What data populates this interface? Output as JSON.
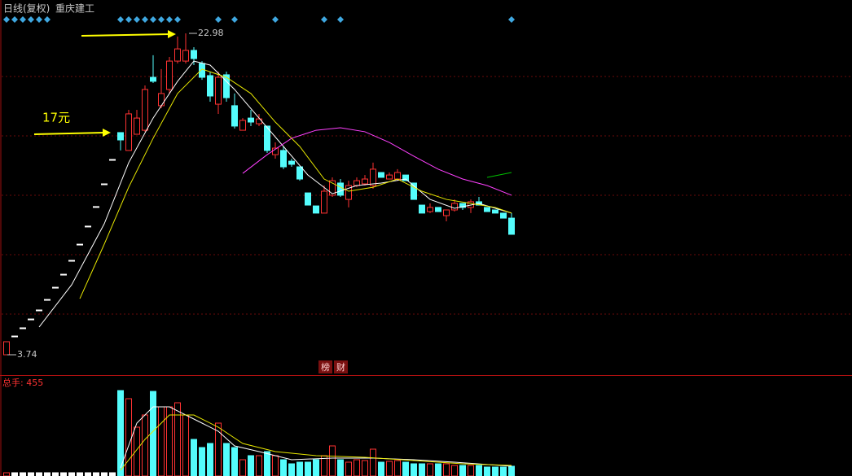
{
  "chart_data": {
    "type": "candlestick",
    "period": "日线(复权)",
    "title": "重庆建工",
    "ylim": [
      3.74,
      22.98
    ],
    "up_color": "#ff3232",
    "down_color": "#54fcfc",
    "flat_color": "#ffffff",
    "open": [
      3.74,
      4.86,
      5.35,
      5.88,
      6.42,
      7.05,
      7.78,
      8.56,
      9.39,
      10.36,
      11.44,
      12.61,
      13.97,
      15.43,
      17.04,
      15.97,
      16.94,
      17.18,
      20.35,
      18.65,
      19.62,
      21.32,
      21.32,
      21.96,
      21.18,
      20.45,
      18.74,
      20.5,
      18.65,
      17.18,
      17.91,
      17.57,
      17.43,
      15.72,
      15.97,
      15.33,
      14.99,
      13.43,
      12.65,
      12.22,
      13.29,
      14.02,
      13.04,
      13.87,
      13.97,
      13.87,
      14.65,
      14.26,
      14.26,
      14.5,
      14.02,
      12.7,
      12.31,
      12.56,
      12.07,
      12.41,
      12.8,
      12.56,
      12.9,
      12.56,
      12.41,
      12.22,
      11.92
    ],
    "high": [
      4.52,
      4.86,
      5.35,
      5.88,
      6.42,
      7.05,
      7.78,
      8.56,
      9.39,
      10.36,
      11.44,
      12.61,
      13.97,
      15.43,
      17.04,
      18.4,
      18.4,
      19.86,
      21.67,
      20.84,
      21.57,
      22.79,
      22.98,
      22.15,
      21.32,
      20.69,
      20.69,
      20.69,
      19.38,
      17.91,
      18.4,
      18.16,
      17.43,
      16.45,
      16.21,
      15.48,
      14.99,
      13.43,
      12.65,
      13.87,
      14.36,
      14.26,
      14.16,
      14.36,
      14.5,
      15.24,
      14.65,
      14.65,
      14.85,
      14.5,
      14.02,
      12.7,
      12.8,
      12.56,
      12.41,
      13.04,
      12.8,
      13.04,
      13.19,
      12.56,
      12.41,
      12.22,
      12.22
    ],
    "low": [
      3.74,
      4.86,
      5.35,
      5.88,
      6.42,
      7.05,
      7.78,
      8.56,
      9.39,
      10.36,
      11.44,
      12.61,
      13.97,
      15.43,
      15.97,
      15.97,
      16.94,
      17.09,
      20.01,
      18.5,
      19.38,
      21.18,
      21.18,
      21.08,
      20.2,
      18.89,
      18.16,
      18.89,
      17.28,
      17.18,
      17.43,
      17.43,
      15.82,
      15.48,
      14.85,
      14.99,
      14.16,
      12.7,
      12.22,
      12.22,
      13.19,
      13.19,
      12.56,
      13.77,
      13.87,
      13.68,
      14.36,
      14.26,
      14.16,
      14.16,
      13.04,
      12.22,
      12.22,
      12.31,
      11.73,
      12.31,
      12.41,
      12.22,
      12.7,
      12.31,
      12.22,
      11.92,
      10.95
    ],
    "close": [
      4.52,
      4.86,
      5.35,
      5.88,
      6.42,
      7.05,
      7.78,
      8.56,
      9.39,
      10.36,
      11.44,
      12.61,
      13.97,
      15.43,
      16.6,
      18.16,
      17.91,
      19.62,
      20.11,
      19.38,
      21.32,
      22.05,
      21.96,
      21.47,
      20.35,
      19.23,
      20.35,
      19.13,
      17.43,
      17.77,
      17.67,
      17.86,
      15.97,
      16.11,
      14.99,
      15.14,
      14.26,
      12.7,
      12.22,
      13.53,
      14.16,
      13.29,
      13.87,
      14.16,
      14.26,
      14.85,
      14.36,
      14.5,
      14.65,
      14.16,
      13.04,
      12.22,
      12.56,
      12.31,
      12.41,
      12.8,
      12.56,
      12.9,
      12.7,
      12.31,
      12.22,
      11.92,
      10.95
    ],
    "ma": [
      {
        "color": "#ffffff",
        "x": [
          4,
          8,
          12,
          15,
          18,
          21,
          23,
          25,
          28,
          31,
          34,
          37,
          40,
          43,
          46,
          49,
          52,
          55,
          58,
          62
        ],
        "values": [
          5.4,
          7.93,
          11.58,
          15.24,
          17.91,
          20.11,
          21.32,
          21.08,
          19.62,
          17.91,
          16.21,
          14.5,
          13.38,
          13.87,
          14.02,
          14.26,
          13.04,
          12.51,
          12.8,
          12.22
        ]
      },
      {
        "color": "#e8e800",
        "x": [
          9,
          12,
          15,
          18,
          21,
          24,
          27,
          30,
          33,
          36,
          39,
          42,
          45,
          48,
          51,
          54,
          57,
          60,
          62
        ],
        "values": [
          7.1,
          10.36,
          13.77,
          16.7,
          19.38,
          20.84,
          20.35,
          19.38,
          17.67,
          16.21,
          14.26,
          13.53,
          13.77,
          14.26,
          13.53,
          13.04,
          12.8,
          12.56,
          12.22
        ]
      },
      {
        "color": "#ff40ff",
        "x": [
          29,
          32,
          35,
          38,
          41,
          44,
          47,
          50,
          53,
          56,
          59,
          62
        ],
        "values": [
          14.6,
          15.72,
          16.7,
          17.18,
          17.33,
          17.09,
          16.45,
          15.63,
          14.85,
          14.26,
          13.87,
          13.29
        ]
      },
      {
        "color": "#00c000",
        "x": [
          59,
          62
        ],
        "values": [
          14.36,
          14.65
        ]
      }
    ],
    "high_label": 22.98,
    "low_label": 3.74,
    "annotation": "17元",
    "markers": [
      0,
      1,
      2,
      3,
      4,
      5,
      14,
      15,
      16,
      17,
      18,
      19,
      20,
      21,
      26,
      28,
      33,
      39,
      41,
      62
    ],
    "marker_color": "#3fa7e0",
    "buttons": [
      "榜",
      "财"
    ],
    "volume": {
      "label": "总手: 455",
      "ylim": [
        0,
        123
      ],
      "values": [
        4,
        4,
        4,
        4,
        4,
        4,
        4,
        4,
        4,
        4,
        4,
        4,
        4,
        4,
        105,
        95,
        60,
        75,
        104,
        85,
        85,
        90,
        75,
        45,
        35,
        40,
        65,
        40,
        35,
        20,
        25,
        25,
        30,
        25,
        20,
        15,
        17,
        17,
        20,
        25,
        37,
        20,
        17,
        20,
        19,
        33,
        17,
        18,
        19,
        17,
        15,
        15,
        15,
        15,
        15,
        13,
        13,
        13,
        13,
        11,
        11,
        11,
        12
      ],
      "ma": [
        {
          "color": "#ffffff",
          "x": [
            14,
            16,
            18,
            20,
            22,
            24,
            26,
            28,
            31,
            35,
            40,
            45,
            50,
            55,
            62
          ],
          "values": [
            10,
            65,
            85,
            85,
            75,
            65,
            55,
            37,
            30,
            20,
            22,
            22,
            20,
            17,
            12
          ]
        },
        {
          "color": "#e8e800",
          "x": [
            14,
            17,
            20,
            23,
            26,
            29,
            33,
            38,
            44,
            50,
            56,
            62
          ],
          "values": [
            7,
            45,
            75,
            75,
            60,
            40,
            30,
            25,
            23,
            19,
            15,
            13
          ]
        }
      ]
    }
  }
}
